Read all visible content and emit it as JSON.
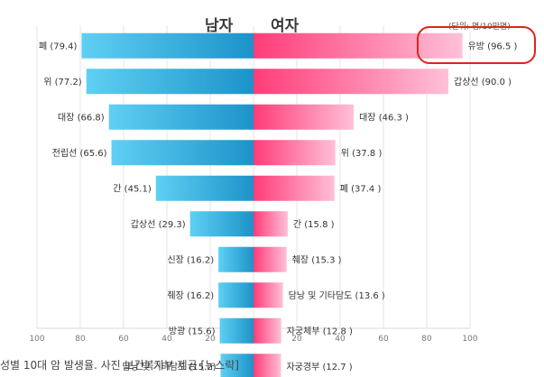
{
  "chart_data": {
    "type": "bar",
    "orientation": "horizontal-diverging",
    "left_title": "남자",
    "right_title": "여자",
    "unit": "(단위: 명/10만명)",
    "xlim": [
      -100,
      100
    ],
    "xticks": [
      100,
      80,
      60,
      40,
      20,
      0,
      20,
      40,
      60,
      80,
      100
    ],
    "ranks": 10,
    "male": [
      {
        "label": "폐 (79.4)",
        "value": 79.4
      },
      {
        "label": "위 (77.2)",
        "value": 77.2
      },
      {
        "label": "대장 (66.8)",
        "value": 66.8
      },
      {
        "label": "전립선 (65.6)",
        "value": 65.6
      },
      {
        "label": "간 (45.1)",
        "value": 45.1
      },
      {
        "label": "갑상선 (29.3)",
        "value": 29.3
      },
      {
        "label": "신장 (16.2)",
        "value": 16.2
      },
      {
        "label": "췌장 (16.2)",
        "value": 16.2
      },
      {
        "label": "방광 (15.6)",
        "value": 15.6
      },
      {
        "label": "담낭 및 기타담도 (15.2)",
        "value": 15.2
      }
    ],
    "female": [
      {
        "label": "유방 (96.5 )",
        "value": 96.5
      },
      {
        "label": "갑상선 (90.0 )",
        "value": 90.0
      },
      {
        "label": "대장 (46.3 )",
        "value": 46.3
      },
      {
        "label": "위 (37.8 )",
        "value": 37.8
      },
      {
        "label": "폐 (37.4 )",
        "value": 37.4
      },
      {
        "label": "간 (15.8 )",
        "value": 15.8
      },
      {
        "label": "췌장 (15.3 )",
        "value": 15.3
      },
      {
        "label": "담낭 및 기타담도 (13.6 )",
        "value": 13.6
      },
      {
        "label": "자궁체부 (12.8 )",
        "value": 12.8
      },
      {
        "label": "자궁경부 (12.7 )",
        "value": 12.7
      }
    ],
    "colors": {
      "male_light": "#5fd0f3",
      "male_dark": "#1c93c9",
      "female_light": "#ffc0d8",
      "female_dark": "#ff3c79"
    },
    "grid": true
  },
  "annotation": {
    "highlight": "유방 (96.5 )"
  },
  "caption": "성별 10대 암 발생율. 사진 보건복지부 제공 [뉴스락]"
}
